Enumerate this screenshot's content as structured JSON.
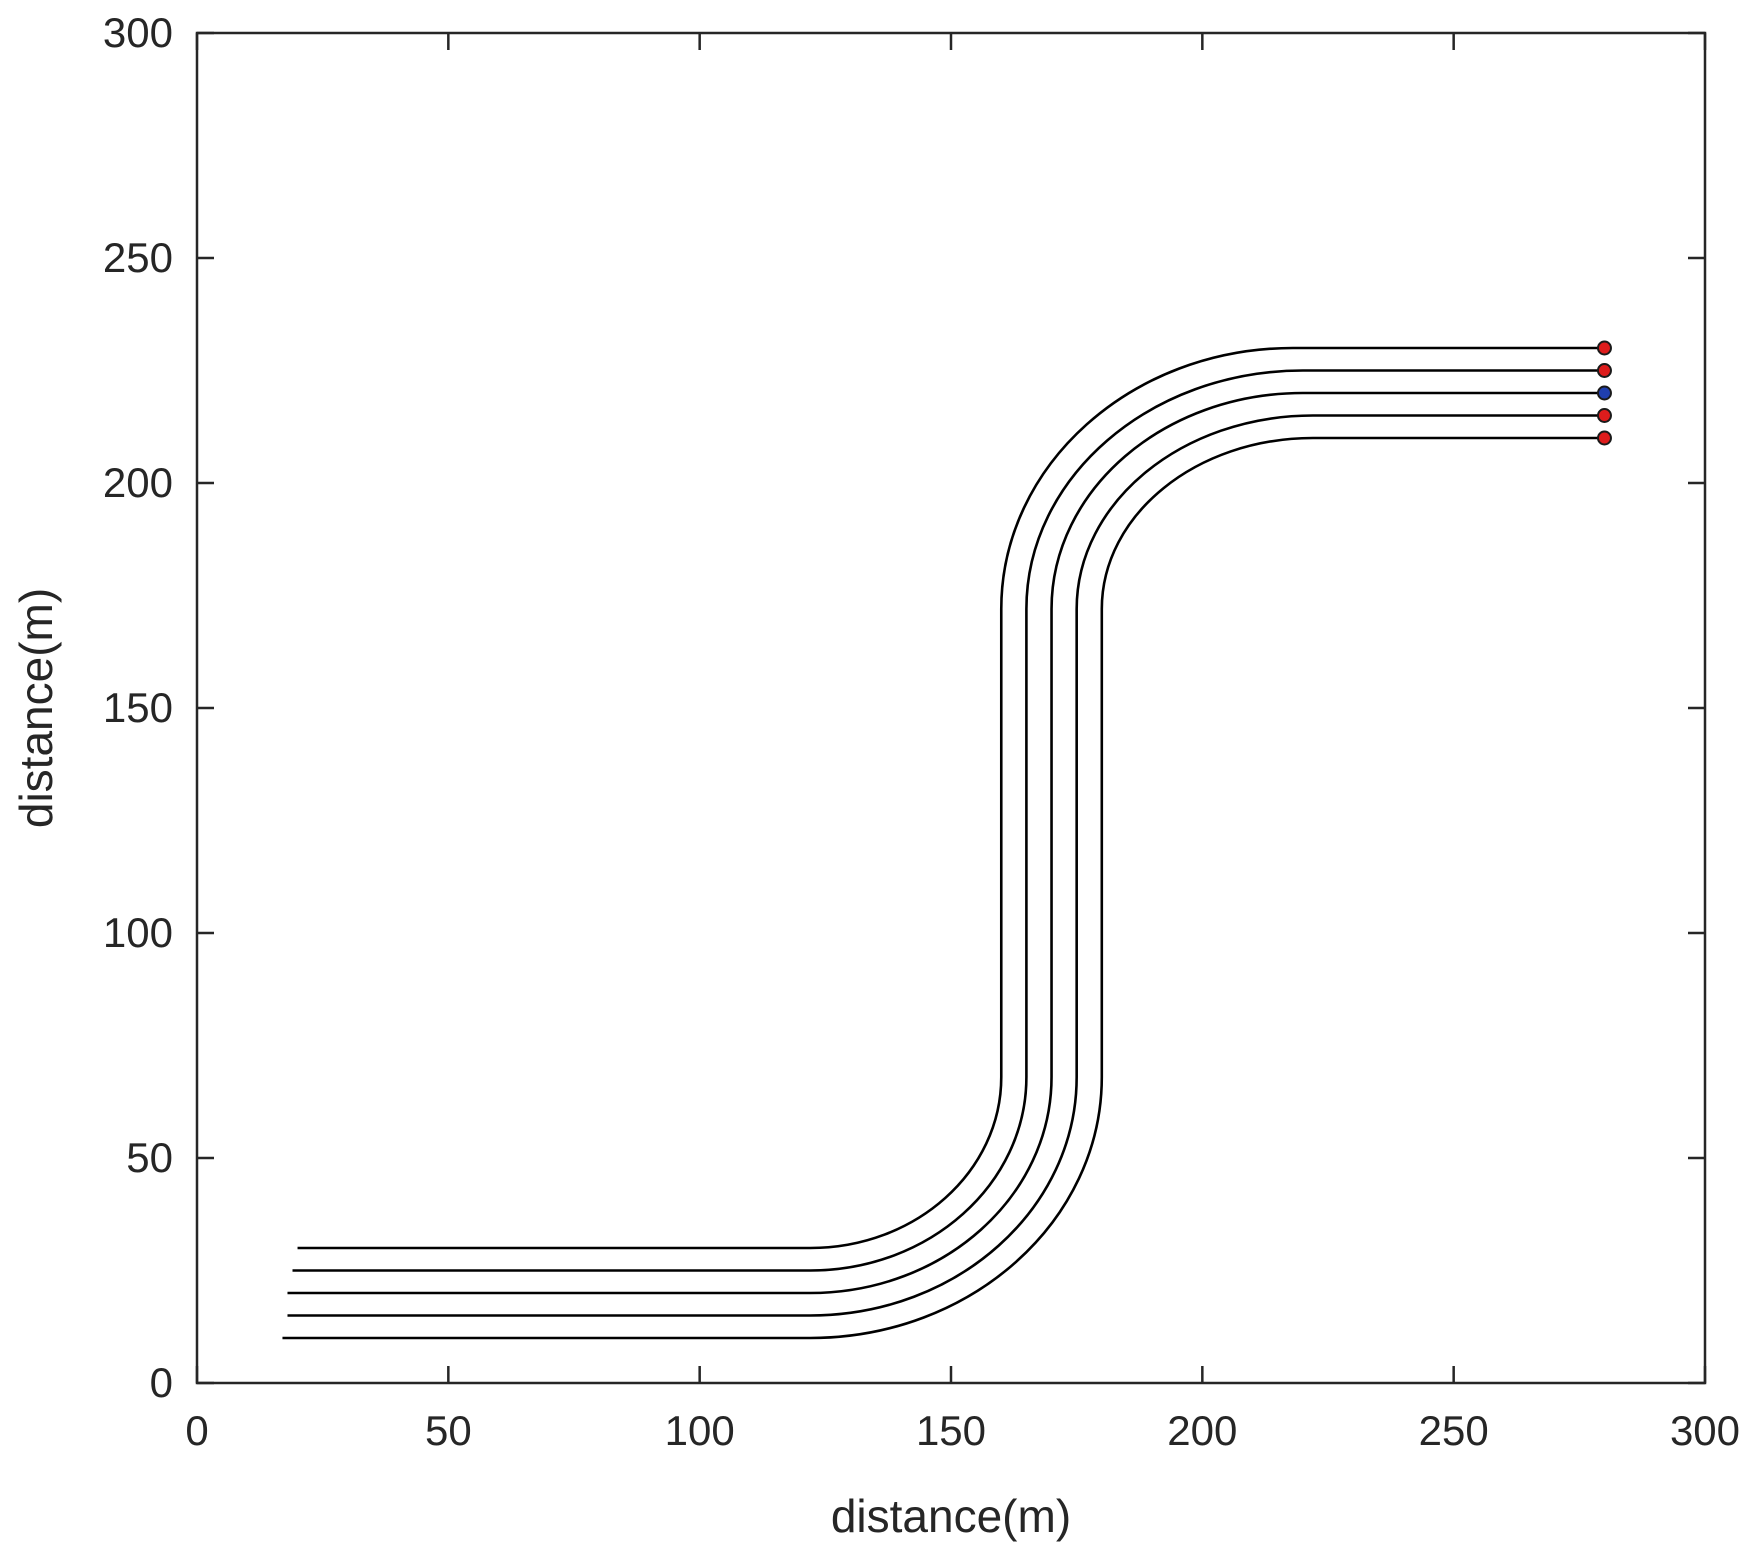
{
  "chart_data": {
    "type": "line",
    "title": "",
    "xlabel": "distance(m)",
    "ylabel": "distance(m)",
    "xlim": [
      0,
      300
    ],
    "ylim": [
      0,
      300
    ],
    "xticks": [
      0,
      50,
      100,
      150,
      200,
      250,
      300
    ],
    "yticks": [
      0,
      50,
      100,
      150,
      200,
      250,
      300
    ],
    "grid": false,
    "legend": "none",
    "series": [
      {
        "color": "#000000",
        "marker": "#dd1c1c",
        "x": [
          20,
          122,
          160,
          160,
          218,
          280
        ],
        "y": [
          30,
          30,
          68,
          172,
          230,
          230
        ]
      },
      {
        "color": "#000000",
        "marker": "#dd1c1c",
        "x": [
          19,
          122,
          165,
          165,
          220,
          280
        ],
        "y": [
          25,
          25,
          68,
          172,
          225,
          225
        ]
      },
      {
        "color": "#000000",
        "marker": "#1f3fb0",
        "x": [
          18,
          122,
          170,
          170,
          220,
          280
        ],
        "y": [
          20,
          20,
          68,
          172,
          220,
          220
        ]
      },
      {
        "color": "#000000",
        "marker": "#dd1c1c",
        "x": [
          18,
          122,
          175,
          175,
          222,
          280
        ],
        "y": [
          15,
          15,
          68,
          172,
          215,
          215
        ]
      },
      {
        "color": "#000000",
        "marker": "#dd1c1c",
        "x": [
          17,
          122,
          180,
          180,
          222,
          280
        ],
        "y": [
          10,
          10,
          68,
          172,
          210,
          210
        ]
      }
    ]
  }
}
